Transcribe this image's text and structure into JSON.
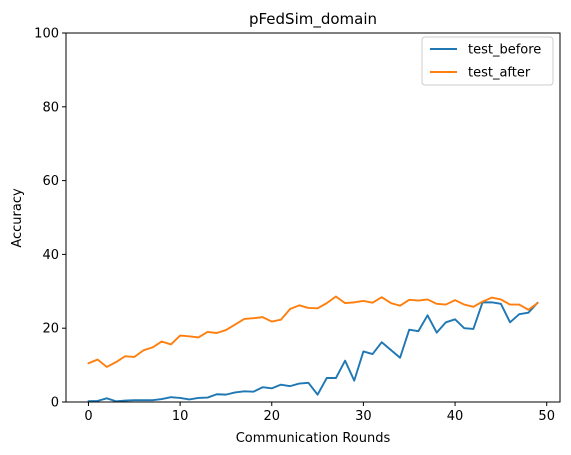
{
  "chart_data": {
    "type": "line",
    "title": "pFedSim_domain",
    "xlabel": "Communication Rounds",
    "ylabel": "Accuracy",
    "xlim": [
      -2.45,
      51.45
    ],
    "ylim": [
      0,
      100
    ],
    "xticks": [
      0,
      10,
      20,
      30,
      40,
      50
    ],
    "yticks": [
      0,
      20,
      40,
      60,
      80,
      100
    ],
    "legend_position": "top-right",
    "grid": false,
    "x": [
      0,
      1,
      2,
      3,
      4,
      5,
      6,
      7,
      8,
      9,
      10,
      11,
      12,
      13,
      14,
      15,
      16,
      17,
      18,
      19,
      20,
      21,
      22,
      23,
      24,
      25,
      26,
      27,
      28,
      29,
      30,
      31,
      32,
      33,
      34,
      35,
      36,
      37,
      38,
      39,
      40,
      41,
      42,
      43,
      44,
      45,
      46,
      47,
      48,
      49
    ],
    "series": [
      {
        "name": "test_before",
        "color": "#1f77b4",
        "values": [
          0.2,
          0.3,
          1.0,
          0.2,
          0.4,
          0.5,
          0.5,
          0.5,
          0.8,
          1.3,
          1.1,
          0.7,
          1.1,
          1.2,
          2.1,
          2.0,
          2.6,
          2.9,
          2.8,
          4.0,
          3.7,
          4.7,
          4.3,
          5.0,
          5.2,
          2.0,
          6.5,
          6.5,
          11.2,
          5.8,
          13.7,
          13.0,
          16.2,
          14.1,
          12.0,
          19.6,
          19.2,
          23.5,
          18.8,
          21.6,
          22.4,
          20.0,
          19.8,
          27.0,
          27.0,
          26.6,
          21.6,
          23.8,
          24.2,
          26.9
        ]
      },
      {
        "name": "test_after",
        "color": "#ff7f0e",
        "values": [
          10.5,
          11.5,
          9.5,
          10.8,
          12.4,
          12.2,
          14.0,
          14.8,
          16.4,
          15.6,
          18.0,
          17.8,
          17.5,
          19.0,
          18.7,
          19.5,
          21.0,
          22.5,
          22.7,
          23.0,
          21.8,
          22.3,
          25.2,
          26.2,
          25.5,
          25.4,
          26.8,
          28.6,
          26.8,
          27.0,
          27.4,
          26.9,
          28.4,
          26.8,
          26.1,
          27.7,
          27.5,
          27.8,
          26.6,
          26.4,
          27.6,
          26.4,
          25.8,
          27.2,
          28.3,
          27.8,
          26.4,
          26.4,
          25.0,
          26.8
        ]
      }
    ]
  }
}
